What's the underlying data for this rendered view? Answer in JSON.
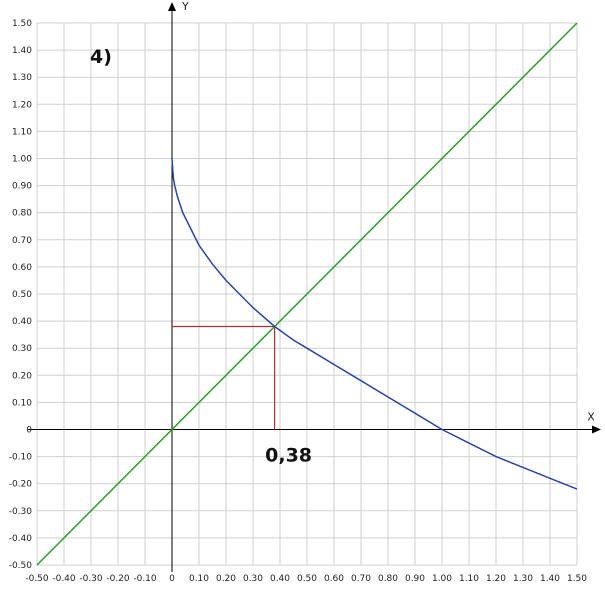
{
  "chart_data": {
    "type": "line",
    "panel_label": "4)",
    "xlabel": "X",
    "ylabel": "Y",
    "xlim": [
      -0.5,
      1.5
    ],
    "ylim": [
      -0.5,
      1.5
    ],
    "grid": true,
    "x_ticks": [
      "-0.50",
      "-0.40",
      "-0.30",
      "-0.20",
      "-0.10",
      "0",
      "0.10",
      "0.20",
      "0.30",
      "0.40",
      "0.50",
      "0.60",
      "0.70",
      "0.80",
      "0.90",
      "1.00",
      "1.10",
      "1.20",
      "1.30",
      "1.40",
      "1.50"
    ],
    "y_ticks": [
      "1.50",
      "1.40",
      "1.30",
      "1.20",
      "1.10",
      "1.00",
      "0.90",
      "0.80",
      "0.70",
      "0.60",
      "0.50",
      "0.40",
      "0.30",
      "0.20",
      "0.10",
      "0",
      "-0.10",
      "-0.20",
      "-0.30",
      "-0.40",
      "-0.50"
    ],
    "series": [
      {
        "color": "#2e9c2e",
        "x": [
          -0.5,
          1.5
        ],
        "y": [
          -0.5,
          1.5
        ]
      },
      {
        "color": "#2a45a8",
        "x": [
          0,
          0.005,
          0.01,
          0.02,
          0.04,
          0.07,
          0.1,
          0.15,
          0.2,
          0.25,
          0.3,
          0.38,
          0.45,
          0.5,
          0.6,
          0.7,
          0.8,
          0.9,
          1.0,
          1.1,
          1.2,
          1.3,
          1.4,
          1.5
        ],
        "y": [
          1.0,
          0.93,
          0.9,
          0.86,
          0.8,
          0.74,
          0.68,
          0.61,
          0.55,
          0.5,
          0.45,
          0.38,
          0.33,
          0.3,
          0.24,
          0.18,
          0.12,
          0.06,
          0.0,
          -0.05,
          -0.1,
          -0.14,
          -0.18,
          -0.22
        ]
      }
    ],
    "annotation": {
      "label": "0,38",
      "x": 0.38,
      "y": 0.38,
      "color": "#b03030"
    }
  }
}
